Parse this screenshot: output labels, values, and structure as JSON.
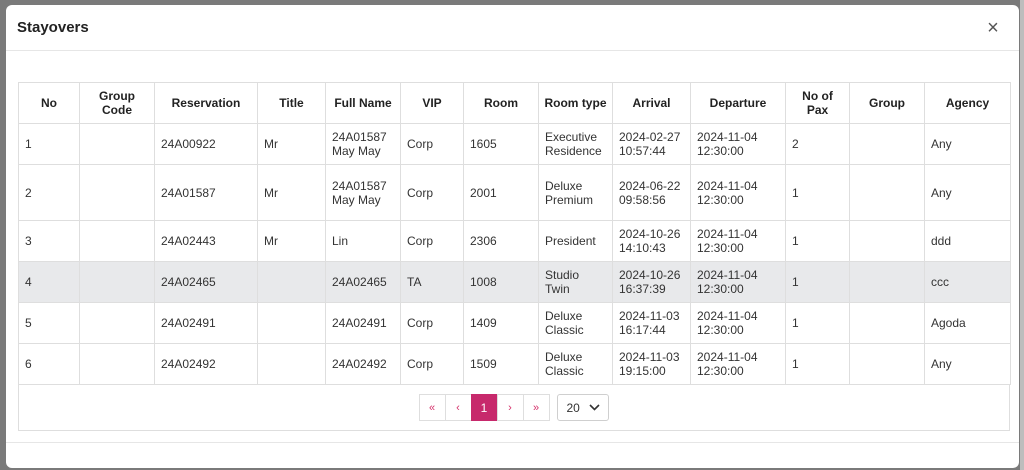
{
  "modal": {
    "title": "Stayovers",
    "close_glyph": "×"
  },
  "table": {
    "headers": [
      "No",
      "Group Code",
      "Reservation",
      "Title",
      "Full Name",
      "VIP",
      "Room",
      "Room type",
      "Arrival",
      "Departure",
      "No of Pax",
      "Group",
      "Agency"
    ],
    "rows": [
      [
        "1",
        "",
        "24A00922",
        "Mr",
        "24A01587 May May",
        "Corp",
        "1605",
        "Executive Residence",
        "2024-02-27 10:57:44",
        "2024-11-04 12:30:00",
        "2",
        "",
        "Any"
      ],
      [
        "2",
        "",
        "24A01587",
        "Mr",
        "24A01587 May May",
        "Corp",
        "2001",
        "Deluxe Premium",
        "2024-06-22 09:58:56",
        "2024-11-04 12:30:00",
        "1",
        "",
        "Any"
      ],
      [
        "3",
        "",
        "24A02443",
        "Mr",
        "Lin",
        "Corp",
        "2306",
        "President",
        "2024-10-26 14:10:43",
        "2024-11-04 12:30:00",
        "1",
        "",
        "ddd"
      ],
      [
        "4",
        "",
        "24A02465",
        "",
        "24A02465",
        "TA",
        "1008",
        "Studio Twin",
        "2024-10-26 16:37:39",
        "2024-11-04 12:30:00",
        "1",
        "",
        "ccc"
      ],
      [
        "5",
        "",
        "24A02491",
        "",
        "24A02491",
        "Corp",
        "1409",
        "Deluxe Classic",
        "2024-11-03 16:17:44",
        "2024-11-04 12:30:00",
        "1",
        "",
        "Agoda"
      ],
      [
        "6",
        "",
        "24A02492",
        "",
        "24A02492",
        "Corp",
        "1509",
        "Deluxe Classic",
        "2024-11-03 19:15:00",
        "2024-11-04 12:30:00",
        "1",
        "",
        "Any"
      ]
    ]
  },
  "pagination": {
    "first_glyph": "«",
    "prev_glyph": "‹",
    "current_page": "1",
    "next_glyph": "›",
    "last_glyph": "»",
    "page_size": "20",
    "accent_color": "#c7296c"
  }
}
